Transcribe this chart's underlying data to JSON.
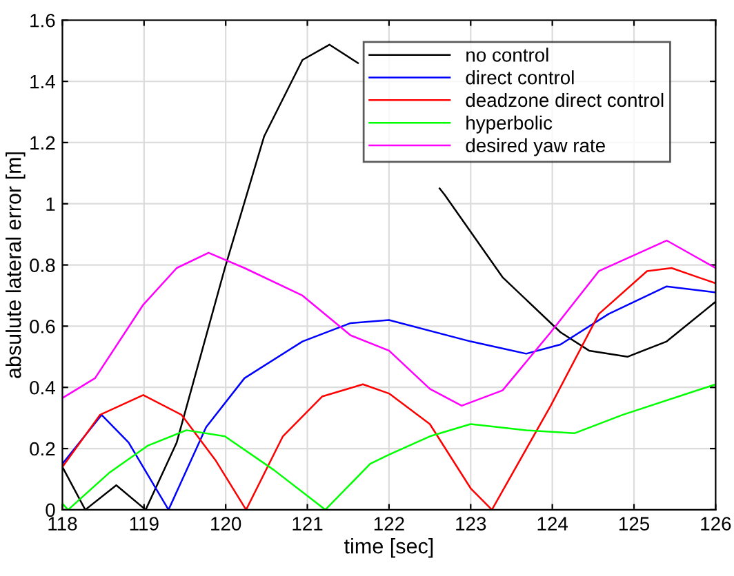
{
  "chart_data": {
    "type": "line",
    "xlabel": "time [sec]",
    "ylabel": "absulute lateral error [m]",
    "xlim": [
      118,
      126
    ],
    "ylim": [
      0,
      1.6
    ],
    "xticks": [
      118,
      119,
      120,
      121,
      122,
      123,
      124,
      125,
      126
    ],
    "yticks": [
      0,
      0.2,
      0.4,
      0.6,
      0.8,
      1,
      1.2,
      1.4,
      1.6
    ],
    "grid": true,
    "legend": "top right",
    "marker": "none",
    "line_style": "solid",
    "series": [
      {
        "name": "no control",
        "color": "#000000",
        "x": [
          118,
          118.28,
          118.66,
          119.02,
          119.4,
          119.99,
          120.47,
          120.94,
          121.27,
          121.62,
          121.85,
          122.2,
          122.62,
          122.68,
          123.39,
          124.1,
          124.45,
          124.92,
          125.4,
          126
        ],
        "values": [
          0.14,
          0,
          0.08,
          0,
          0.22,
          0.79,
          1.22,
          1.47,
          1.52,
          1.46,
          null,
          null,
          1.05,
          1.03,
          0.76,
          0.58,
          0.52,
          0.5,
          0.55,
          0.68
        ]
      },
      {
        "name": "direct control",
        "color": "#0000ff",
        "x": [
          118,
          118.48,
          118.81,
          119.3,
          119.76,
          120.23,
          120.94,
          121.53,
          122,
          123,
          123.68,
          124.1,
          124.69,
          125.4,
          126
        ],
        "values": [
          0.15,
          0.31,
          0.22,
          0,
          0.27,
          0.43,
          0.55,
          0.61,
          0.62,
          0.55,
          0.51,
          0.54,
          0.64,
          0.73,
          0.71
        ]
      },
      {
        "name": "deadzone direct control",
        "color": "#ff0000",
        "x": [
          118,
          118.46,
          118.99,
          119.46,
          119.88,
          120.25,
          120.7,
          121.18,
          121.68,
          122,
          122.5,
          123,
          123.26,
          123.98,
          124.57,
          125.16,
          125.46,
          126
        ],
        "values": [
          0.14,
          0.31,
          0.375,
          0.31,
          0.16,
          0,
          0.24,
          0.37,
          0.41,
          0.38,
          0.28,
          0.07,
          0,
          0.34,
          0.64,
          0.78,
          0.79,
          0.74
        ]
      },
      {
        "name": "hyperbolic",
        "color": "#00ff00",
        "x": [
          118,
          118.07,
          118.57,
          119.05,
          119.52,
          119.99,
          120.59,
          121.22,
          121.77,
          122,
          122.5,
          123,
          123.68,
          124.27,
          124.86,
          126
        ],
        "values": [
          0.02,
          0,
          0.12,
          0.21,
          0.26,
          0.24,
          0.13,
          0,
          0.15,
          0.18,
          0.24,
          0.28,
          0.26,
          0.25,
          0.31,
          0.41
        ]
      },
      {
        "name": "desired yaw rate",
        "color": "#ff00ff",
        "x": [
          118,
          118.4,
          118.99,
          119.4,
          119.79,
          120.23,
          120.94,
          121.53,
          122,
          122.5,
          122.89,
          123.39,
          123.98,
          124.57,
          125.4,
          126
        ],
        "values": [
          0.365,
          0.43,
          0.67,
          0.79,
          0.84,
          0.79,
          0.7,
          0.57,
          0.52,
          0.395,
          0.34,
          0.39,
          0.58,
          0.78,
          0.88,
          0.79
        ]
      }
    ]
  }
}
